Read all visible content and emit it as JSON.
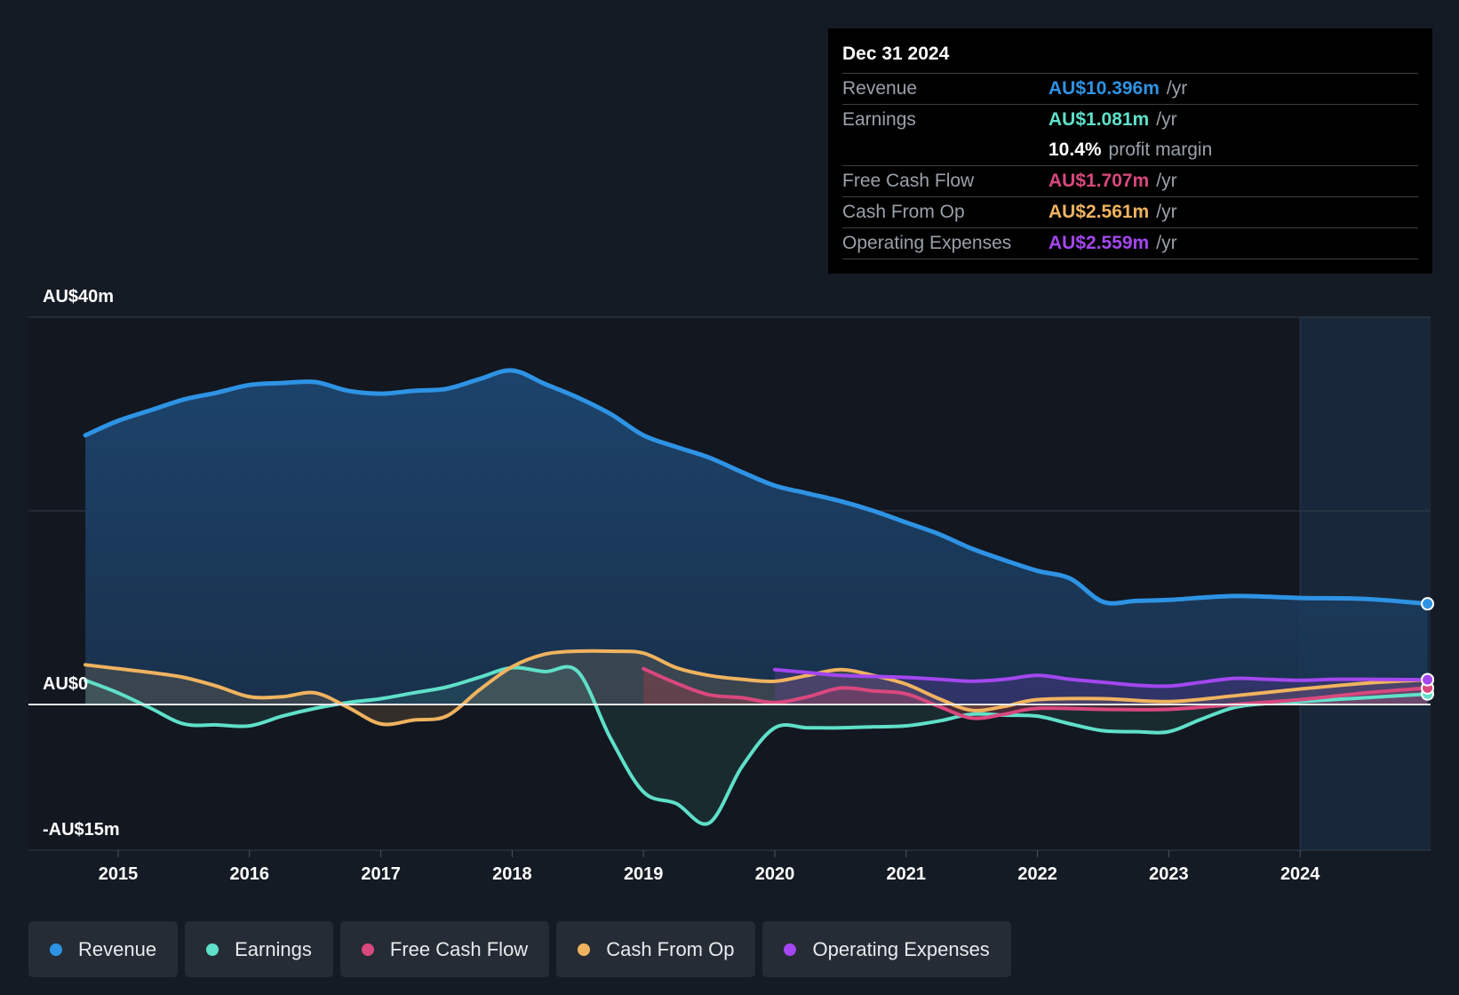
{
  "tooltip": {
    "date": "Dec 31 2024",
    "rows": [
      {
        "label": "Revenue",
        "value": "AU$10.396m",
        "unit": "/yr",
        "color": "#2e93e4"
      },
      {
        "label": "Earnings",
        "value": "AU$1.081m",
        "unit": "/yr",
        "color": "#5fe0c9"
      },
      {
        "label": "",
        "value": "10.4%",
        "unit": "profit margin",
        "color": "#ffffff"
      },
      {
        "label": "Free Cash Flow",
        "value": "AU$1.707m",
        "unit": "/yr",
        "color": "#d9487e"
      },
      {
        "label": "Cash From Op",
        "value": "AU$2.561m",
        "unit": "/yr",
        "color": "#f0b35f"
      },
      {
        "label": "Operating Expenses",
        "value": "AU$2.559m",
        "unit": "/yr",
        "color": "#a347f0"
      }
    ]
  },
  "legend": [
    {
      "label": "Revenue",
      "color": "#2e93e4"
    },
    {
      "label": "Earnings",
      "color": "#5fe0c9"
    },
    {
      "label": "Free Cash Flow",
      "color": "#d9487e"
    },
    {
      "label": "Cash From Op",
      "color": "#f0b35f"
    },
    {
      "label": "Operating Expenses",
      "color": "#a347f0"
    }
  ],
  "chart_data": {
    "type": "area",
    "ylim": [
      -15,
      40
    ],
    "y_tick_labels": [
      "AU$40m",
      "AU$0",
      "-AU$15m"
    ],
    "x_ticks": [
      "2015",
      "2016",
      "2017",
      "2018",
      "2019",
      "2020",
      "2021",
      "2022",
      "2023",
      "2024"
    ],
    "highlight_from": 2024.0,
    "series": [
      {
        "name": "Revenue",
        "color": "#2e93e4",
        "fill": true,
        "points": [
          [
            2014.75,
            27.8
          ],
          [
            2015.0,
            29.3
          ],
          [
            2015.25,
            30.4
          ],
          [
            2015.5,
            31.5
          ],
          [
            2015.75,
            32.2
          ],
          [
            2016.0,
            33.0
          ],
          [
            2016.25,
            33.2
          ],
          [
            2016.5,
            33.3
          ],
          [
            2016.75,
            32.4
          ],
          [
            2017.0,
            32.1
          ],
          [
            2017.25,
            32.4
          ],
          [
            2017.5,
            32.6
          ],
          [
            2017.75,
            33.6
          ],
          [
            2018.0,
            34.5
          ],
          [
            2018.25,
            33.1
          ],
          [
            2018.5,
            31.7
          ],
          [
            2018.75,
            30.0
          ],
          [
            2019.0,
            27.8
          ],
          [
            2019.25,
            26.6
          ],
          [
            2019.5,
            25.5
          ],
          [
            2019.75,
            24.0
          ],
          [
            2020.0,
            22.6
          ],
          [
            2020.25,
            21.8
          ],
          [
            2020.5,
            21.0
          ],
          [
            2020.75,
            20.0
          ],
          [
            2021.0,
            18.8
          ],
          [
            2021.25,
            17.6
          ],
          [
            2021.5,
            16.1
          ],
          [
            2021.75,
            14.9
          ],
          [
            2022.0,
            13.8
          ],
          [
            2022.25,
            13.0
          ],
          [
            2022.5,
            10.6
          ],
          [
            2022.75,
            10.7
          ],
          [
            2023.0,
            10.8
          ],
          [
            2023.5,
            11.2
          ],
          [
            2024.0,
            11.0
          ],
          [
            2024.5,
            10.9
          ],
          [
            2024.97,
            10.4
          ]
        ]
      },
      {
        "name": "Earnings",
        "color": "#5fe0c9",
        "fill": true,
        "points": [
          [
            2014.75,
            2.5
          ],
          [
            2015.0,
            1.2
          ],
          [
            2015.25,
            -0.4
          ],
          [
            2015.5,
            -2.0
          ],
          [
            2015.75,
            -2.1
          ],
          [
            2016.0,
            -2.2
          ],
          [
            2016.25,
            -1.2
          ],
          [
            2016.5,
            -0.4
          ],
          [
            2016.75,
            0.2
          ],
          [
            2017.0,
            0.6
          ],
          [
            2017.25,
            1.2
          ],
          [
            2017.5,
            1.8
          ],
          [
            2017.75,
            2.8
          ],
          [
            2018.0,
            3.8
          ],
          [
            2018.25,
            3.4
          ],
          [
            2018.5,
            3.4
          ],
          [
            2018.75,
            -3.5
          ],
          [
            2019.0,
            -9.0
          ],
          [
            2019.25,
            -10.2
          ],
          [
            2019.5,
            -12.2
          ],
          [
            2019.75,
            -6.4
          ],
          [
            2020.0,
            -2.4
          ],
          [
            2020.25,
            -2.4
          ],
          [
            2020.5,
            -2.4
          ],
          [
            2020.75,
            -2.3
          ],
          [
            2021.0,
            -2.2
          ],
          [
            2021.25,
            -1.7
          ],
          [
            2021.5,
            -1.0
          ],
          [
            2021.75,
            -1.1
          ],
          [
            2022.0,
            -1.2
          ],
          [
            2022.25,
            -2.0
          ],
          [
            2022.5,
            -2.7
          ],
          [
            2022.75,
            -2.8
          ],
          [
            2023.0,
            -2.8
          ],
          [
            2023.25,
            -1.5
          ],
          [
            2023.5,
            -0.3
          ],
          [
            2023.75,
            0.1
          ],
          [
            2024.0,
            0.3
          ],
          [
            2024.5,
            0.7
          ],
          [
            2024.97,
            1.08
          ]
        ]
      },
      {
        "name": "Free Cash Flow",
        "color": "#d9487e",
        "fill": true,
        "points": [
          [
            2019.0,
            3.7
          ],
          [
            2019.25,
            2.2
          ],
          [
            2019.5,
            1.0
          ],
          [
            2019.75,
            0.7
          ],
          [
            2020.0,
            0.2
          ],
          [
            2020.25,
            0.8
          ],
          [
            2020.5,
            1.7
          ],
          [
            2020.75,
            1.4
          ],
          [
            2021.0,
            1.1
          ],
          [
            2021.25,
            -0.2
          ],
          [
            2021.5,
            -1.4
          ],
          [
            2021.75,
            -1.0
          ],
          [
            2022.0,
            -0.4
          ],
          [
            2022.5,
            -0.5
          ],
          [
            2023.0,
            -0.5
          ],
          [
            2023.5,
            0.0
          ],
          [
            2024.0,
            0.5
          ],
          [
            2024.5,
            1.2
          ],
          [
            2024.97,
            1.71
          ]
        ]
      },
      {
        "name": "Cash From Op",
        "color": "#f0b35f",
        "fill": true,
        "points": [
          [
            2014.75,
            4.1
          ],
          [
            2015.0,
            3.7
          ],
          [
            2015.25,
            3.3
          ],
          [
            2015.5,
            2.8
          ],
          [
            2015.75,
            1.9
          ],
          [
            2016.0,
            0.8
          ],
          [
            2016.25,
            0.8
          ],
          [
            2016.5,
            1.2
          ],
          [
            2016.75,
            -0.3
          ],
          [
            2017.0,
            -2.0
          ],
          [
            2017.25,
            -1.6
          ],
          [
            2017.5,
            -1.2
          ],
          [
            2017.75,
            1.5
          ],
          [
            2018.0,
            3.9
          ],
          [
            2018.25,
            5.2
          ],
          [
            2018.5,
            5.5
          ],
          [
            2018.75,
            5.5
          ],
          [
            2019.0,
            5.3
          ],
          [
            2019.25,
            3.8
          ],
          [
            2019.5,
            3.0
          ],
          [
            2019.75,
            2.6
          ],
          [
            2020.0,
            2.4
          ],
          [
            2020.25,
            3.0
          ],
          [
            2020.5,
            3.6
          ],
          [
            2020.75,
            3.0
          ],
          [
            2021.0,
            2.1
          ],
          [
            2021.25,
            0.6
          ],
          [
            2021.5,
            -0.6
          ],
          [
            2021.75,
            -0.2
          ],
          [
            2022.0,
            0.5
          ],
          [
            2022.5,
            0.6
          ],
          [
            2023.0,
            0.3
          ],
          [
            2023.5,
            0.9
          ],
          [
            2024.0,
            1.6
          ],
          [
            2024.5,
            2.2
          ],
          [
            2024.97,
            2.56
          ]
        ]
      },
      {
        "name": "Operating Expenses",
        "color": "#a347f0",
        "fill": true,
        "points": [
          [
            2020.0,
            3.6
          ],
          [
            2020.25,
            3.3
          ],
          [
            2020.5,
            3.0
          ],
          [
            2020.75,
            2.9
          ],
          [
            2021.0,
            2.8
          ],
          [
            2021.25,
            2.6
          ],
          [
            2021.5,
            2.4
          ],
          [
            2021.75,
            2.6
          ],
          [
            2022.0,
            3.0
          ],
          [
            2022.25,
            2.6
          ],
          [
            2022.5,
            2.3
          ],
          [
            2022.75,
            2.0
          ],
          [
            2023.0,
            1.9
          ],
          [
            2023.25,
            2.3
          ],
          [
            2023.5,
            2.7
          ],
          [
            2023.75,
            2.6
          ],
          [
            2024.0,
            2.5
          ],
          [
            2024.25,
            2.6
          ],
          [
            2024.5,
            2.6
          ],
          [
            2024.97,
            2.56
          ]
        ]
      }
    ]
  }
}
